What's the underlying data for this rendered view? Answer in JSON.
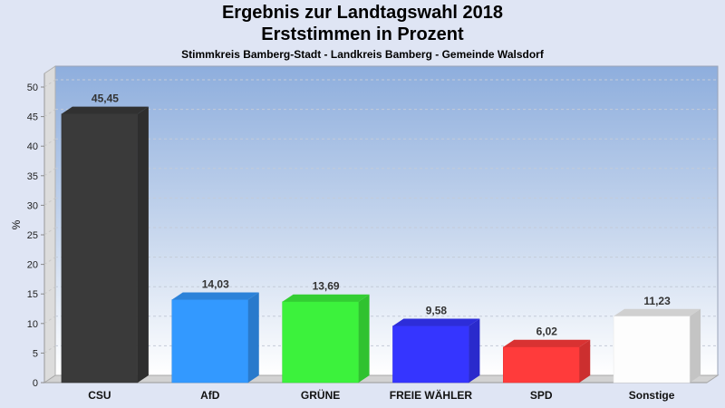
{
  "chart_data": {
    "type": "bar",
    "title": "Ergebnis zur Landtagswahl 2018",
    "subtitle": "Erststimmen in Prozent",
    "subtitle2": "Stimmkreis Bamberg-Stadt - Landkreis Bamberg - Gemeinde Walsdorf",
    "xlabel": "",
    "ylabel": "%",
    "ylim": [
      0,
      50
    ],
    "yticks": [
      0,
      5,
      10,
      15,
      20,
      25,
      30,
      35,
      40,
      45,
      50
    ],
    "grid": true,
    "style": "3d",
    "categories": [
      "CSU",
      "AfD",
      "GRÜNE",
      "FREIE WÄHLER",
      "SPD",
      "Sonstige"
    ],
    "values": [
      45.45,
      14.03,
      13.69,
      9.58,
      6.02,
      11.23
    ],
    "value_labels": [
      "45,45",
      "14,03",
      "13,69",
      "9,58",
      "6,02",
      "11,23"
    ],
    "colors": [
      "#3a3a3a",
      "#3399ff",
      "#3cf23c",
      "#3535ff",
      "#ff3b3b",
      "#ffffff"
    ]
  }
}
